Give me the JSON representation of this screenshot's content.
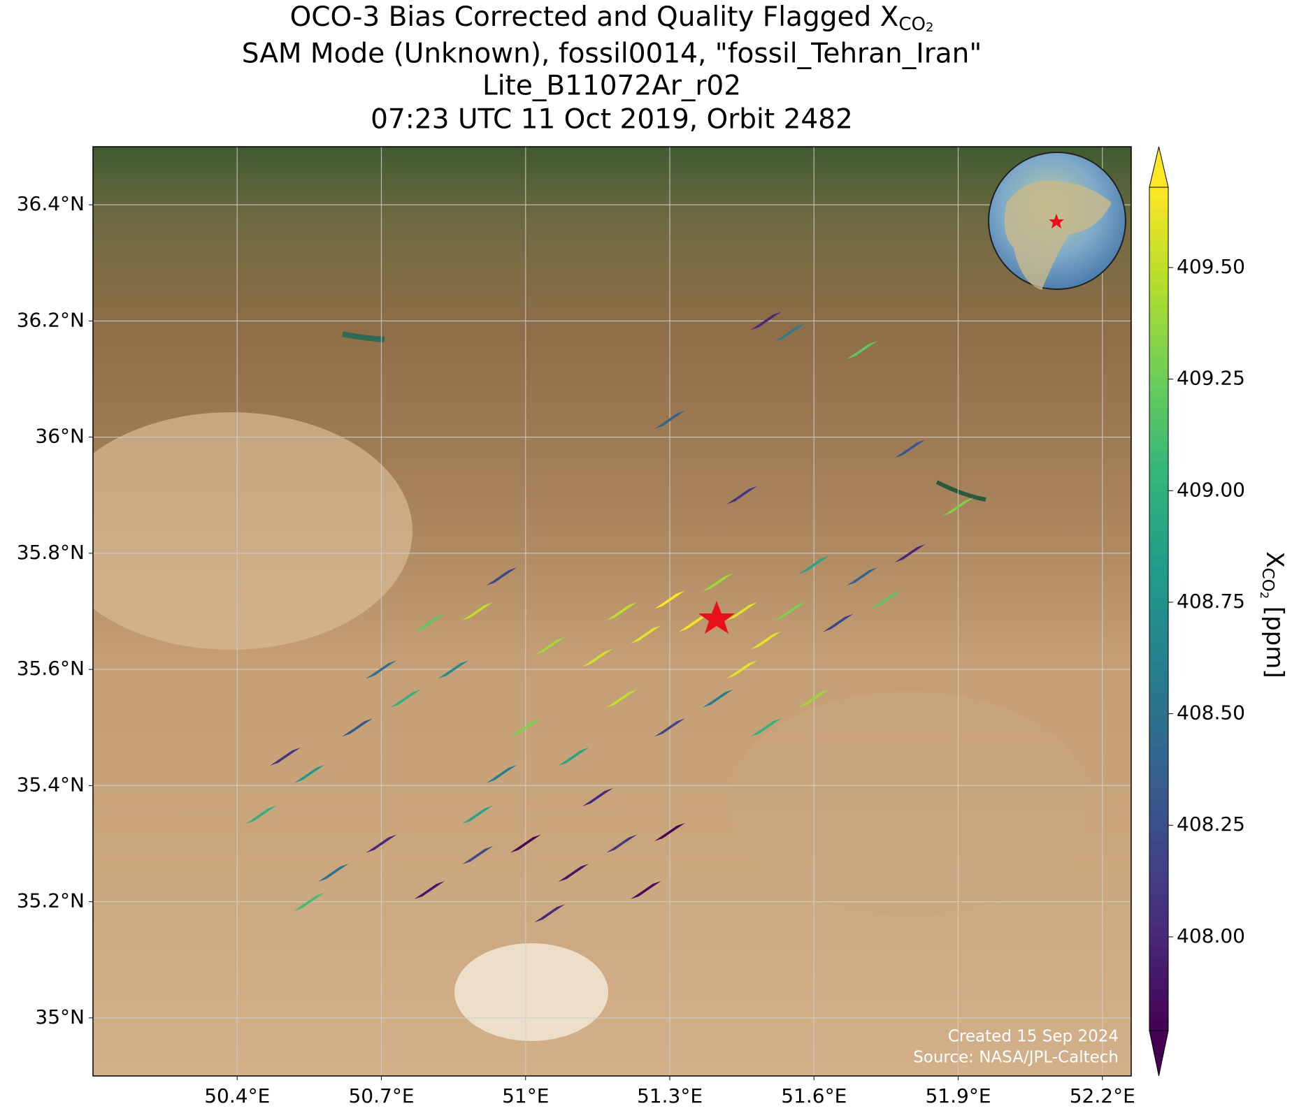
{
  "chart_data": {
    "type": "map",
    "title_lines": [
      [
        "OCO-3 Bias Corrected and Quality Flagged X",
        "CO",
        "2"
      ],
      [
        "SAM Mode (Unknown), fossil0014, \"fossil_Tehran_Iran\""
      ],
      [
        "Lite_B11072Ar_r02"
      ],
      [
        "07:23 UTC 11 Oct 2019, Orbit 2482"
      ]
    ],
    "xlim": [
      50.1,
      52.26
    ],
    "ylim": [
      34.9,
      36.5
    ],
    "xticks": [
      {
        "value": 50.4,
        "label": "50.4°E"
      },
      {
        "value": 50.7,
        "label": "50.7°E"
      },
      {
        "value": 51,
        "label": "51°E"
      },
      {
        "value": 51.3,
        "label": "51.3°E"
      },
      {
        "value": 51.6,
        "label": "51.6°E"
      },
      {
        "value": 51.9,
        "label": "51.9°E"
      },
      {
        "value": 52.2,
        "label": "52.2°E"
      }
    ],
    "yticks": [
      {
        "value": 35,
        "label": "35°N"
      },
      {
        "value": 35.2,
        "label": "35.2°N"
      },
      {
        "value": 35.4,
        "label": "35.4°N"
      },
      {
        "value": 35.6,
        "label": "35.6°N"
      },
      {
        "value": 35.8,
        "label": "35.8°N"
      },
      {
        "value": 36,
        "label": "36°N"
      },
      {
        "value": 36.2,
        "label": "36.2°N"
      },
      {
        "value": 36.4,
        "label": "36.4°N"
      }
    ],
    "grid": true,
    "colormap": [
      "#440154",
      "#482878",
      "#3e4989",
      "#31688e",
      "#26828e",
      "#1f9e89",
      "#35b779",
      "#6ece58",
      "#b5de2b",
      "#fde725"
    ],
    "clim": [
      407.79,
      409.68
    ],
    "cticks": [
      {
        "value": 408,
        "label": "408.00"
      },
      {
        "value": 408.25,
        "label": "408.25"
      },
      {
        "value": 408.5,
        "label": "408.50"
      },
      {
        "value": 408.75,
        "label": "408.75"
      },
      {
        "value": 409,
        "label": "409.00"
      },
      {
        "value": 409.25,
        "label": "409.25"
      },
      {
        "value": 409.5,
        "label": "409.50"
      }
    ],
    "colorbar_label": [
      "X",
      "CO",
      "2",
      " [ppm]"
    ],
    "footprints": {
      "lon": [
        51.3,
        51.35,
        51.25,
        51.45,
        51.2,
        51.4,
        51.5,
        51.55,
        51.15,
        51.05,
        51.6,
        51.7,
        51.75,
        51.65,
        51.8,
        51.5,
        51.55,
        51.7,
        51.8,
        51.9,
        51.3,
        51.45,
        50.9,
        50.85,
        50.75,
        50.65,
        50.55,
        50.45,
        50.5,
        50.7,
        50.8,
        50.95,
        51.0,
        51.1,
        51.2,
        51.3,
        51.4,
        51.5,
        51.6,
        51.15,
        50.95,
        51.45,
        50.6,
        50.7,
        50.8,
        50.9,
        51.0,
        51.1,
        51.2,
        51.3,
        51.05,
        50.55,
        50.9,
        51.25
      ],
      "lat": [
        35.72,
        35.68,
        35.66,
        35.7,
        35.7,
        35.75,
        35.65,
        35.7,
        35.62,
        35.64,
        35.78,
        35.76,
        35.72,
        35.68,
        35.8,
        36.2,
        36.18,
        36.15,
        35.98,
        35.88,
        36.03,
        35.9,
        35.7,
        35.6,
        35.55,
        35.5,
        35.42,
        35.35,
        35.45,
        35.6,
        35.68,
        35.76,
        35.5,
        35.45,
        35.55,
        35.5,
        35.55,
        35.5,
        35.55,
        35.38,
        35.42,
        35.6,
        35.25,
        35.3,
        35.22,
        35.28,
        35.3,
        35.25,
        35.3,
        35.32,
        35.18,
        35.2,
        35.35,
        35.22
      ],
      "xco2": [
        409.7,
        409.65,
        409.6,
        409.6,
        409.5,
        409.4,
        409.6,
        409.3,
        409.55,
        409.4,
        408.9,
        408.4,
        409.2,
        408.2,
        408.0,
        408.0,
        408.6,
        409.2,
        408.3,
        409.3,
        408.4,
        408.1,
        409.5,
        408.7,
        409.0,
        408.3,
        408.8,
        409.0,
        408.1,
        408.5,
        409.2,
        408.2,
        409.3,
        408.9,
        409.5,
        408.2,
        408.6,
        409.0,
        409.4,
        408.0,
        408.6,
        409.6,
        408.5,
        408.0,
        407.9,
        408.2,
        407.8,
        407.9,
        408.1,
        407.8,
        408.0,
        409.1,
        408.9,
        407.85
      ]
    },
    "footer": [
      "Created 15 Sep 2024",
      "Source: NASA/JPL-Caltech"
    ]
  }
}
